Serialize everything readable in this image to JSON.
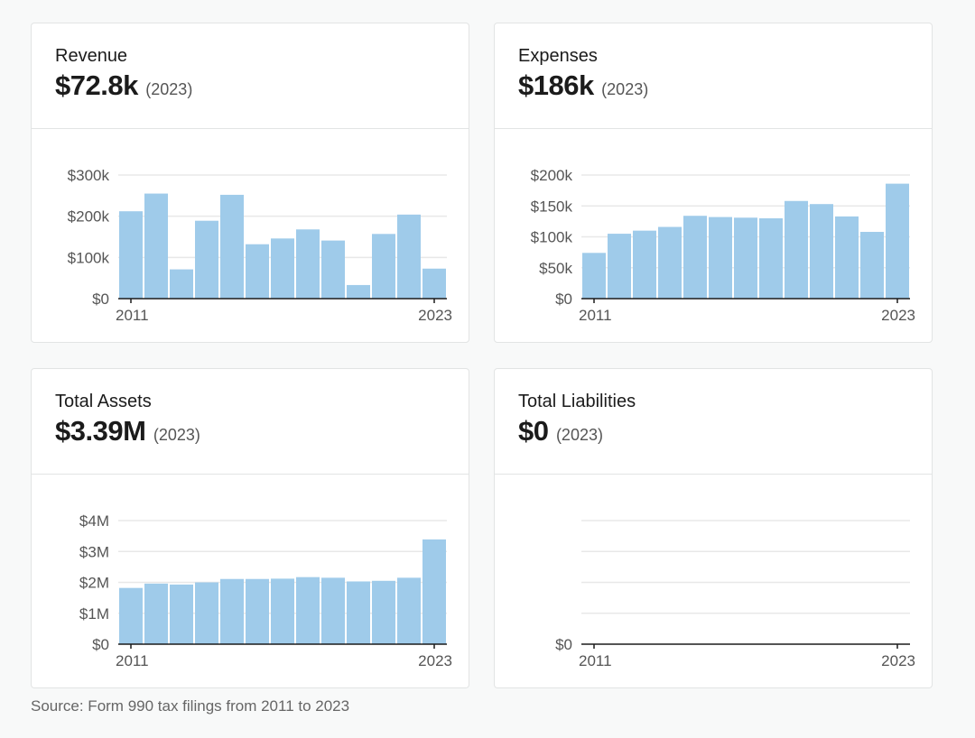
{
  "cards": [
    {
      "title": "Revenue",
      "value": "$72.8k",
      "year": "(2023)"
    },
    {
      "title": "Expenses",
      "value": "$186k",
      "year": "(2023)"
    },
    {
      "title": "Total Assets",
      "value": "$3.39M",
      "year": "(2023)"
    },
    {
      "title": "Total Liabilities",
      "value": "$0",
      "year": "(2023)"
    }
  ],
  "source": "Source: Form 990 tax filings from 2011 to 2023",
  "colors": {
    "bar": "#9fcbea",
    "grid": "#e8e8e8",
    "axis": "#1b1b1b"
  },
  "chart_data": [
    {
      "type": "bar",
      "title": "Revenue",
      "categories": [
        "2011",
        "2012",
        "2013",
        "2014",
        "2015",
        "2016",
        "2017",
        "2018",
        "2019",
        "2020",
        "2021",
        "2022",
        "2023"
      ],
      "values": [
        212000,
        255000,
        71000,
        189000,
        252000,
        132000,
        146000,
        168000,
        141000,
        33000,
        157000,
        204000,
        72800
      ],
      "ylim": [
        0,
        300000
      ],
      "yticks": [
        0,
        100000,
        200000,
        300000
      ],
      "ytick_labels": [
        "$0",
        "$100k",
        "$200k",
        "$300k"
      ],
      "xtick_labels": [
        "2011",
        "2023"
      ],
      "xlabel": "",
      "ylabel": "",
      "grid": true
    },
    {
      "type": "bar",
      "title": "Expenses",
      "categories": [
        "2011",
        "2012",
        "2013",
        "2014",
        "2015",
        "2016",
        "2017",
        "2018",
        "2019",
        "2020",
        "2021",
        "2022",
        "2023"
      ],
      "values": [
        74000,
        105000,
        110000,
        116000,
        134000,
        132000,
        131000,
        130000,
        158000,
        153000,
        133000,
        108000,
        186000
      ],
      "ylim": [
        0,
        200000
      ],
      "yticks": [
        0,
        50000,
        100000,
        150000,
        200000
      ],
      "ytick_labels": [
        "$0",
        "$50k",
        "$100k",
        "$150k",
        "$200k"
      ],
      "xtick_labels": [
        "2011",
        "2023"
      ],
      "xlabel": "",
      "ylabel": "",
      "grid": true
    },
    {
      "type": "bar",
      "title": "Total Assets",
      "categories": [
        "2011",
        "2012",
        "2013",
        "2014",
        "2015",
        "2016",
        "2017",
        "2018",
        "2019",
        "2020",
        "2021",
        "2022",
        "2023"
      ],
      "values": [
        1820000,
        1960000,
        1930000,
        2000000,
        2110000,
        2110000,
        2120000,
        2170000,
        2150000,
        2030000,
        2050000,
        2150000,
        3390000
      ],
      "ylim": [
        0,
        4000000
      ],
      "yticks": [
        0,
        1000000,
        2000000,
        3000000,
        4000000
      ],
      "ytick_labels": [
        "$0",
        "$1M",
        "$2M",
        "$3M",
        "$4M"
      ],
      "xtick_labels": [
        "2011",
        "2023"
      ],
      "xlabel": "",
      "ylabel": "",
      "grid": true
    },
    {
      "type": "bar",
      "title": "Total Liabilities",
      "categories": [
        "2011",
        "2012",
        "2013",
        "2014",
        "2015",
        "2016",
        "2017",
        "2018",
        "2019",
        "2020",
        "2021",
        "2022",
        "2023"
      ],
      "values": [
        0,
        0,
        0,
        0,
        0,
        0,
        0,
        0,
        0,
        0,
        0,
        0,
        0
      ],
      "ylim": [
        0,
        4
      ],
      "yticks": [
        0,
        1,
        2,
        3,
        4
      ],
      "ytick_labels": [
        "$0",
        "",
        "",
        "",
        ""
      ],
      "xtick_labels": [
        "2011",
        "2023"
      ],
      "xlabel": "",
      "ylabel": "",
      "grid": true
    }
  ]
}
